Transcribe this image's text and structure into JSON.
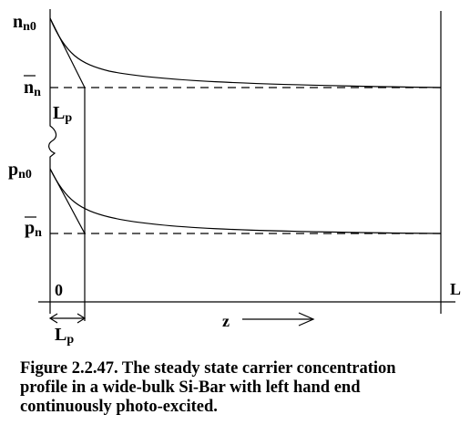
{
  "labels": {
    "n_n0": {
      "main": "n",
      "sub": "n0"
    },
    "n_bar": {
      "main": "n",
      "sub": "n"
    },
    "L_p_left": {
      "main": "L",
      "sub": "p"
    },
    "p_n0": {
      "main": "p",
      "sub": "n0"
    },
    "p_bar": {
      "main": "p",
      "sub": "n"
    },
    "origin": "0",
    "L_p_bottom": {
      "main": "L",
      "sub": "p"
    },
    "z_axis": "z",
    "L_end": "L"
  },
  "caption": {
    "line1": "Figure 2.2.47. The steady state carrier concentration",
    "line2": "profile in a wide-bulk Si-Bar with left hand end",
    "line3": "continuously photo-excited."
  }
}
